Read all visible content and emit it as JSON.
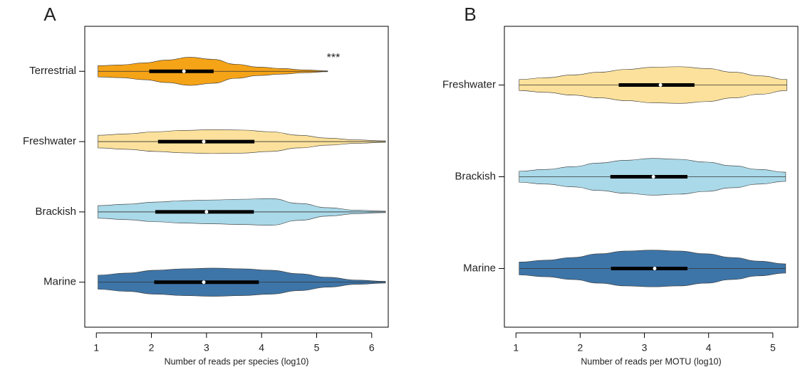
{
  "chart_data": [
    {
      "type": "violin",
      "label": "A",
      "xlabel": "Number of reads per species (log10)",
      "annotation": "***",
      "xlim": [
        0.79,
        6.3
      ],
      "xticks": [
        1,
        2,
        3,
        4,
        5,
        6
      ],
      "series": [
        {
          "name": "Terrestrial",
          "color": "#f5a317",
          "min": 1.03,
          "q1": 1.96,
          "median": 2.59,
          "q3": 3.13,
          "max": 5.2,
          "density": [
            0.4,
            0.45,
            0.6,
            0.8,
            1.0,
            0.85,
            0.5,
            0.3,
            0.2,
            0.1,
            0.03
          ]
        },
        {
          "name": "Freshwater",
          "color": "#fbe19c",
          "min": 1.03,
          "q1": 2.12,
          "median": 2.95,
          "q3": 3.87,
          "max": 6.25,
          "density": [
            0.45,
            0.55,
            0.7,
            0.8,
            0.85,
            0.82,
            0.7,
            0.45,
            0.25,
            0.12,
            0.05
          ]
        },
        {
          "name": "Brackish",
          "color": "#aad9e9",
          "min": 1.03,
          "q1": 2.07,
          "median": 3.0,
          "q3": 3.86,
          "max": 6.25,
          "density": [
            0.45,
            0.55,
            0.7,
            0.8,
            0.85,
            0.9,
            0.95,
            0.6,
            0.3,
            0.12,
            0.05
          ]
        },
        {
          "name": "Marine",
          "color": "#3e75a8",
          "min": 1.03,
          "q1": 2.05,
          "median": 2.95,
          "q3": 3.95,
          "max": 6.25,
          "density": [
            0.5,
            0.65,
            0.85,
            0.95,
            1.0,
            0.95,
            0.85,
            0.6,
            0.35,
            0.15,
            0.06
          ]
        }
      ]
    },
    {
      "type": "violin",
      "label": "B",
      "xlabel": "Number of reads per MOTU (log10)",
      "xlim": [
        0.82,
        5.39
      ],
      "xticks": [
        1,
        2,
        3,
        4,
        5
      ],
      "series": [
        {
          "name": "Freshwater",
          "color": "#fbe19c",
          "min": 1.05,
          "q1": 2.6,
          "median": 3.25,
          "q3": 3.78,
          "max": 5.22,
          "density": [
            0.3,
            0.4,
            0.55,
            0.7,
            0.85,
            0.97,
            1.0,
            0.9,
            0.7,
            0.5,
            0.3
          ]
        },
        {
          "name": "Brackish",
          "color": "#aad9e9",
          "min": 1.05,
          "q1": 2.47,
          "median": 3.14,
          "q3": 3.67,
          "max": 5.2,
          "density": [
            0.3,
            0.4,
            0.55,
            0.75,
            0.9,
            1.0,
            0.95,
            0.8,
            0.6,
            0.4,
            0.25
          ]
        },
        {
          "name": "Marine",
          "color": "#3e75a8",
          "min": 1.05,
          "q1": 2.48,
          "median": 3.16,
          "q3": 3.67,
          "max": 5.2,
          "density": [
            0.35,
            0.45,
            0.6,
            0.8,
            0.95,
            1.0,
            0.95,
            0.8,
            0.6,
            0.4,
            0.25
          ]
        }
      ]
    }
  ]
}
